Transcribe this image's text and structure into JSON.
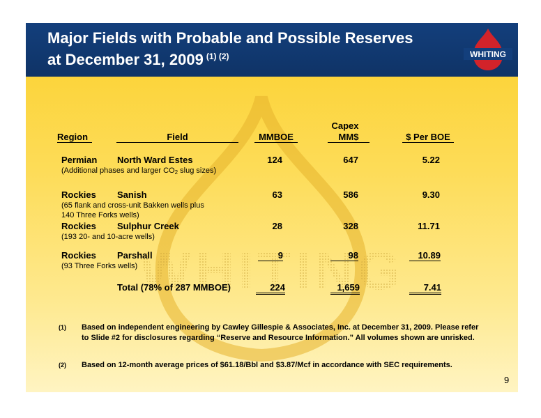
{
  "header": {
    "title_line1": "Major Fields with Probable and Possible Reserves",
    "title_line2": "at December 31, 2009",
    "title_notes": "(1) (2)",
    "logo_text": "WHITING"
  },
  "watermark_text": "WHITING",
  "table": {
    "headers": {
      "region": "Region",
      "field": "Field",
      "mmboe": "MMBOE",
      "capex_line1": "Capex",
      "capex_line2": "MM$",
      "per_boe": "$ Per BOE"
    },
    "rows": [
      {
        "region": "Permian",
        "field": "North Ward Estes",
        "mmboe": "124",
        "capex": "647",
        "per_boe": "5.22",
        "note_lines": [
          "(Additional phases and larger CO",
          "2",
          " slug sizes)"
        ]
      },
      {
        "region": "Rockies",
        "field": "Sanish",
        "mmboe": "63",
        "capex": "586",
        "per_boe": "9.30",
        "note_lines": [
          "(65 flank and cross-unit Bakken wells plus",
          "140 Three Forks wells)"
        ]
      },
      {
        "region": "Rockies",
        "field": "Sulphur Creek",
        "mmboe": "28",
        "capex": "328",
        "per_boe": "11.71",
        "note_lines": [
          "(193 20- and 10-acre wells)"
        ]
      },
      {
        "region": "Rockies",
        "field": "Parshall",
        "mmboe": "9",
        "capex": "98",
        "per_boe": "10.89",
        "note_lines": [
          "(93 Three Forks wells)"
        ]
      }
    ],
    "total": {
      "label": "Total (78% of 287 MMBOE)",
      "mmboe": "224",
      "capex": "1,659",
      "per_boe": "7.41"
    }
  },
  "footnotes": [
    {
      "mark": "(1)",
      "text": "Based on independent engineering by Cawley Gillespie & Associates, Inc. at December 31, 2009. Please refer to Slide #2 for disclosures regarding “Reserve and Resource Information.”  All volumes shown are unrisked."
    },
    {
      "mark": "(2)",
      "text": "Based on 12-month average prices of $61.18/Bbl and $3.87/Mcf in accordance with SEC requirements."
    }
  ],
  "page_number": "9",
  "colors": {
    "header_bg": "#133f7c",
    "slide_bg_top": "#fcd02c",
    "slide_bg_bottom": "#fff4c2",
    "logo_red": "#d2232a"
  }
}
